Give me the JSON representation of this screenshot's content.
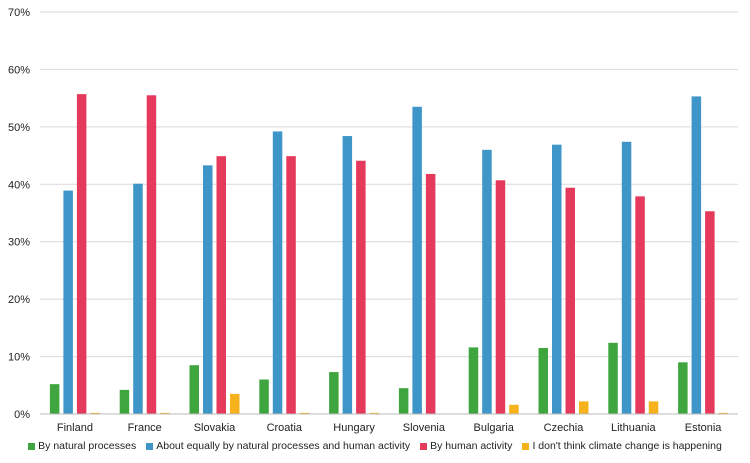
{
  "chart_data": {
    "type": "bar",
    "categories": [
      "Finland",
      "France",
      "Slovakia",
      "Croatia",
      "Hungary",
      "Slovenia",
      "Bulgaria",
      "Czechia",
      "Lithuania",
      "Estonia"
    ],
    "series": [
      {
        "name": "By natural processes",
        "color": "#3fa63f",
        "values": [
          5.2,
          4.2,
          8.5,
          6.0,
          7.3,
          4.5,
          11.6,
          11.5,
          12.4,
          9.0
        ]
      },
      {
        "name": "About equally by natural processes and human activity",
        "color": "#3d95c8",
        "values": [
          38.9,
          40.1,
          43.3,
          49.2,
          48.4,
          53.5,
          46.0,
          46.9,
          47.4,
          55.3
        ]
      },
      {
        "name": "By human activity",
        "color": "#e63a5c",
        "values": [
          55.7,
          55.5,
          44.9,
          44.9,
          44.1,
          41.8,
          40.7,
          39.4,
          37.9,
          35.3
        ]
      },
      {
        "name": "I don't think climate change is happening",
        "color": "#f6b21c",
        "values": [
          0.2,
          0.2,
          3.5,
          0.2,
          0.2,
          0.0,
          1.6,
          2.2,
          2.2,
          0.2
        ]
      }
    ],
    "yticks": [
      "0%",
      "10%",
      "20%",
      "30%",
      "40%",
      "50%",
      "60%",
      "70%"
    ],
    "ylim": [
      0,
      70
    ],
    "grid": true,
    "legend_position": "bottom",
    "title": "",
    "xlabel": "",
    "ylabel": ""
  }
}
